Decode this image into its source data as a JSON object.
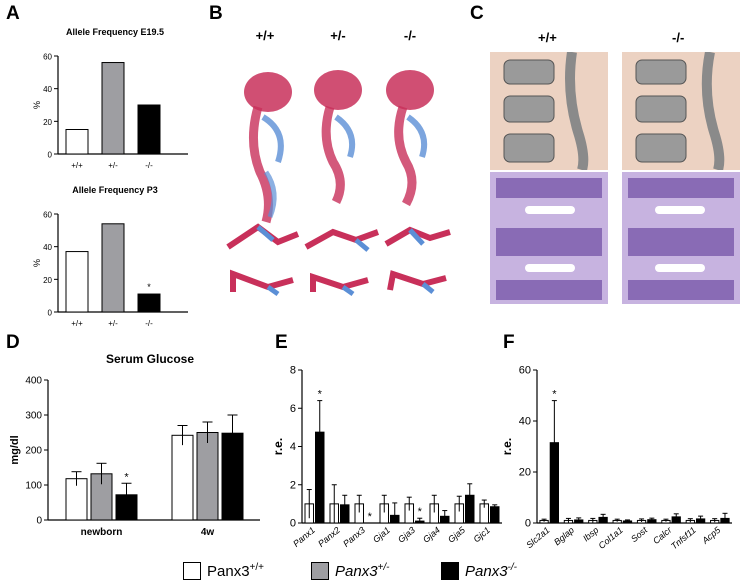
{
  "panels": {
    "A": "A",
    "B": "B",
    "C": "C",
    "D": "D",
    "E": "E",
    "F": "F"
  },
  "genotypes": [
    "+/+",
    "+/-",
    "-/-"
  ],
  "legend": {
    "items": [
      {
        "label": "Panx3+/+",
        "gene": "Panx3",
        "sup": "+/+",
        "color": "#ffffff"
      },
      {
        "label": "Panx3+/-",
        "gene": "Panx3",
        "sup": "+/-",
        "color": "#9e9ea2"
      },
      {
        "label": "Panx3-/-",
        "gene": "Panx3",
        "sup": "-/-",
        "color": "#000000"
      }
    ]
  },
  "colors": {
    "wt": "#ffffff",
    "het": "#9e9ea2",
    "ko": "#000000",
    "skeleton_red": "#c8305a",
    "cartilage_blue": "#5b8fd6",
    "section_bg": "#f0d8cc",
    "hist_purple": "#8a6ab0"
  },
  "chart_data": [
    {
      "id": "A1",
      "type": "bar",
      "title": "Allele Frequency E19.5",
      "ylabel": "%",
      "xlabel": "",
      "categories": [
        "+/+",
        "+/-",
        "-/-"
      ],
      "values": [
        15,
        56,
        30
      ],
      "ylim": [
        0,
        60
      ],
      "yticks": [
        0,
        20,
        40,
        60
      ],
      "annotations": []
    },
    {
      "id": "A2",
      "type": "bar",
      "title": "Allele Frequency P3",
      "ylabel": "%",
      "xlabel": "",
      "categories": [
        "+/+",
        "+/-",
        "-/-"
      ],
      "values": [
        37,
        54,
        11
      ],
      "ylim": [
        0,
        60
      ],
      "yticks": [
        0,
        20,
        40,
        60
      ],
      "annotations": [
        {
          "category": "-/-",
          "text": "*"
        }
      ]
    },
    {
      "id": "D",
      "type": "bar",
      "title": "Serum Glucose",
      "ylabel": "mg/dl",
      "xlabel": "",
      "categories": [
        "newborn",
        "4w"
      ],
      "series": [
        {
          "name": "Panx3+/+",
          "values": [
            118,
            242
          ],
          "errors": [
            20,
            28
          ]
        },
        {
          "name": "Panx3+/-",
          "values": [
            132,
            250
          ],
          "errors": [
            30,
            30
          ]
        },
        {
          "name": "Panx3-/-",
          "values": [
            72,
            248
          ],
          "errors": [
            33,
            52
          ]
        }
      ],
      "ylim": [
        0,
        400
      ],
      "yticks": [
        0,
        100,
        200,
        300,
        400
      ],
      "annotations": [
        {
          "category": "newborn",
          "series": "Panx3-/-",
          "text": "*"
        }
      ]
    },
    {
      "id": "E",
      "type": "bar",
      "ylabel": "r.e.",
      "xlabel": "",
      "categories": [
        "Panx1",
        "Panx2",
        "Panx3",
        "Gja1",
        "Gja3",
        "Gja4",
        "Gja5",
        "Gjc1"
      ],
      "series": [
        {
          "name": "Panx3+/+",
          "values": [
            1.0,
            1.0,
            1.0,
            1.0,
            1.0,
            1.0,
            1.0,
            1.0
          ],
          "errors": [
            0.75,
            1.0,
            0.45,
            0.45,
            0.35,
            0.45,
            0.4,
            0.2
          ]
        },
        {
          "name": "Panx3-/-",
          "values": [
            4.75,
            0.95,
            0.0,
            0.4,
            0.1,
            0.35,
            1.45,
            0.85
          ],
          "errors": [
            1.65,
            0.5,
            0.0,
            0.65,
            0.15,
            0.3,
            0.6,
            0.1
          ]
        }
      ],
      "ylim": [
        0,
        8
      ],
      "yticks": [
        0,
        2,
        4,
        6,
        8
      ],
      "annotations": [
        {
          "category": "Panx1",
          "series": "Panx3-/-",
          "text": "*"
        },
        {
          "category": "Panx3",
          "series": "Panx3-/-",
          "text": "*"
        },
        {
          "category": "Gja3",
          "series": "Panx3-/-",
          "text": "*"
        }
      ]
    },
    {
      "id": "F",
      "type": "bar",
      "ylabel": "r.e.",
      "xlabel": "",
      "categories": [
        "Slc2a1",
        "Bglap",
        "Ibsp",
        "Col1a1",
        "Sost",
        "Calcr",
        "Tnfsf11",
        "Acp5"
      ],
      "series": [
        {
          "name": "Panx3+/+",
          "values": [
            1.0,
            1.0,
            1.0,
            1.0,
            1.0,
            1.0,
            1.0,
            1.0
          ],
          "errors": [
            0.5,
            0.8,
            0.8,
            0.5,
            0.6,
            0.5,
            0.7,
            0.7
          ]
        },
        {
          "name": "Panx3-/-",
          "values": [
            31.5,
            1.2,
            2.2,
            0.8,
            1.3,
            2.4,
            1.6,
            1.8
          ],
          "errors": [
            16.5,
            0.8,
            1.2,
            0.4,
            0.6,
            1.2,
            1.1,
            2.0
          ]
        }
      ],
      "ylim": [
        0,
        60
      ],
      "yticks": [
        0,
        20,
        40,
        60
      ],
      "annotations": [
        {
          "category": "Slc2a1",
          "series": "Panx3-/-",
          "text": "*"
        }
      ]
    }
  ]
}
